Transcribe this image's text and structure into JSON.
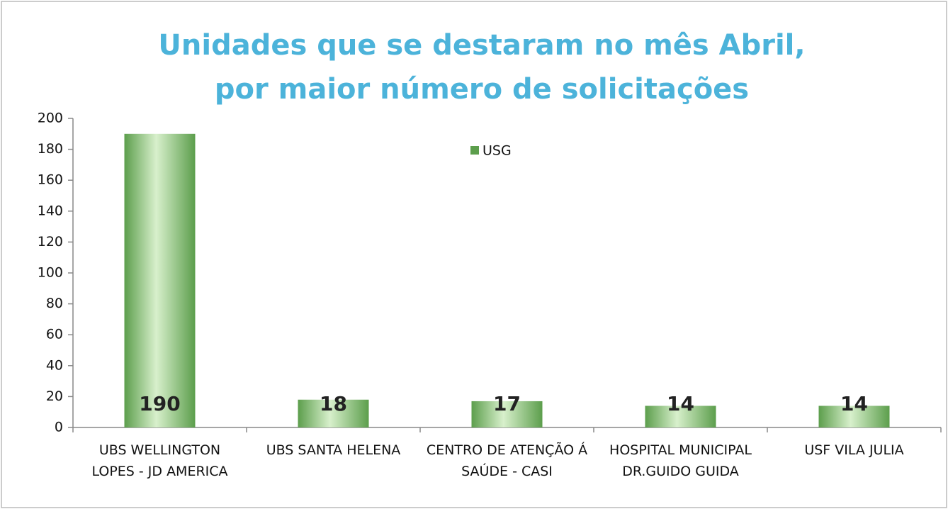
{
  "chart_data": {
    "type": "bar",
    "title": [
      "Unidades  que se destaram no mês Abril,",
      "por  maior número de solicitações"
    ],
    "categories": [
      "UBS WELLINGTON LOPES - JD AMERICA",
      "UBS SANTA HELENA",
      "CENTRO DE ATENÇÃO Á SAÚDE - CASI",
      "HOSPITAL MUNICIPAL DR.GUIDO GUIDA",
      "USF VILA JULIA"
    ],
    "series": [
      {
        "name": "USG",
        "color": "#5c9e4c",
        "values": [
          190,
          18,
          17,
          14,
          14
        ]
      }
    ],
    "ylim": [
      0,
      200
    ],
    "yticks": [
      0,
      20,
      40,
      60,
      80,
      100,
      120,
      140,
      160,
      180,
      200
    ],
    "legend": "top"
  }
}
